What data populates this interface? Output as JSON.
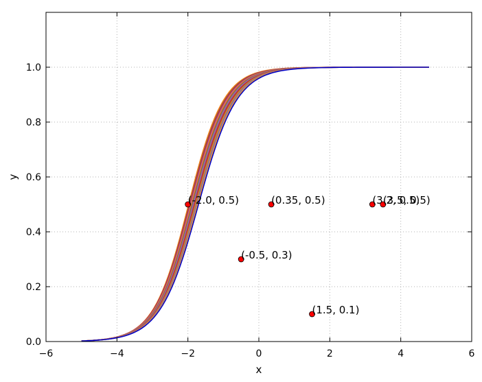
{
  "chart_data": {
    "type": "line",
    "title": "",
    "xlabel": "x",
    "ylabel": "y",
    "xlim": [
      -6,
      6
    ],
    "ylim": [
      0,
      1.2
    ],
    "xticks": [
      -6,
      -4,
      -2,
      0,
      2,
      4,
      6
    ],
    "yticks": [
      0.0,
      0.2,
      0.4,
      0.6,
      0.8,
      1.0
    ],
    "xtick_labels": [
      "−6",
      "−4",
      "−2",
      "0",
      "2",
      "4",
      "6"
    ],
    "ytick_labels": [
      "0.0",
      "0.2",
      "0.4",
      "0.6",
      "0.8",
      "1.0"
    ],
    "grid": true,
    "curve_family": {
      "description": "logistic curves y = 1 / (1 + exp(-k (x - x0)))",
      "x_range": [
        -5,
        4.8
      ],
      "curves": [
        {
          "x0": -1.98,
          "k": 2.02,
          "color": "#ff7f0e"
        },
        {
          "x0": -1.96,
          "k": 2.0,
          "color": "#8c564b"
        },
        {
          "x0": -1.94,
          "k": 1.98,
          "color": "#d62728"
        },
        {
          "x0": -1.92,
          "k": 1.97,
          "color": "#9467bd"
        },
        {
          "x0": -1.9,
          "k": 1.96,
          "color": "#ff7f0e"
        },
        {
          "x0": -1.88,
          "k": 1.95,
          "color": "#8c564b"
        },
        {
          "x0": -1.86,
          "k": 1.94,
          "color": "#7f7f7f"
        },
        {
          "x0": -1.84,
          "k": 1.93,
          "color": "#9467bd"
        },
        {
          "x0": -1.82,
          "k": 1.92,
          "color": "#d62728"
        },
        {
          "x0": -1.8,
          "k": 1.91,
          "color": "#8c564b"
        },
        {
          "x0": -1.78,
          "k": 1.9,
          "color": "#ff7f0e"
        },
        {
          "x0": -1.76,
          "k": 1.89,
          "color": "#7f7f7f"
        },
        {
          "x0": -1.74,
          "k": 1.88,
          "color": "#9467bd"
        },
        {
          "x0": -1.72,
          "k": 1.87,
          "color": "#ffa500"
        },
        {
          "x0": -1.7,
          "k": 1.86,
          "color": "#0000cc"
        }
      ]
    },
    "points": [
      {
        "x": -2.0,
        "y": 0.5,
        "label": "(-2.0, 0.5)"
      },
      {
        "x": 0.35,
        "y": 0.5,
        "label": "(0.35, 0.5)"
      },
      {
        "x": -0.5,
        "y": 0.3,
        "label": "(-0.5, 0.3)"
      },
      {
        "x": 1.5,
        "y": 0.1,
        "label": "(1.5, 0.1)"
      },
      {
        "x": 3.2,
        "y": 0.5,
        "label": "(3.2, 0.5)"
      },
      {
        "x": 3.5,
        "y": 0.5,
        "label": "(3.5, 0.5)"
      }
    ],
    "point_color": "#ff0000"
  }
}
